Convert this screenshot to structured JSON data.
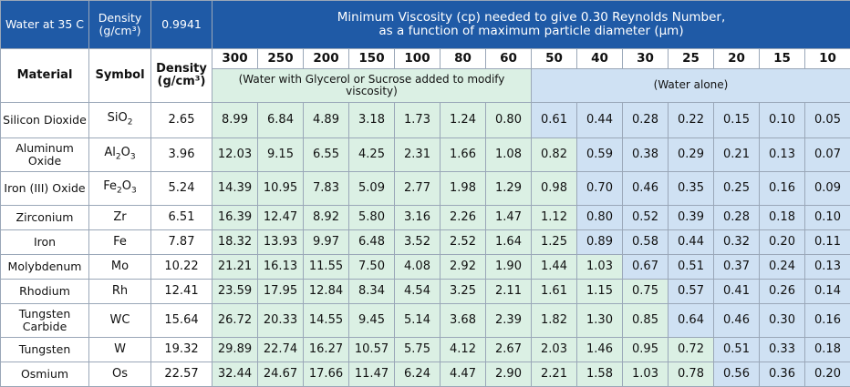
{
  "header": {
    "water_label": "Water at 35 C",
    "density_label": "Density (g/cm³)",
    "water_density": "0.9941",
    "title_line1": "Minimum Viscosity (cp) needed to give 0.30 Reynolds Number,",
    "title_line2": "as a function of maximum particle diameter (μm)"
  },
  "columns": {
    "material": "Material",
    "symbol": "Symbol",
    "density": "Density (g/cm³)",
    "glycerol_note": "(Water with Glycerol or Sucrose added to modify viscosity)",
    "water_note": "(Water alone)"
  },
  "diameters": [
    "300",
    "250",
    "200",
    "150",
    "100",
    "80",
    "60",
    "50",
    "40",
    "30",
    "25",
    "20",
    "15",
    "10"
  ],
  "rows": [
    {
      "material": "Silicon Dioxide",
      "symbol": "SiO2",
      "density": "2.65",
      "values": [
        "8.99",
        "6.84",
        "4.89",
        "3.18",
        "1.73",
        "1.24",
        "0.80",
        "0.61",
        "0.44",
        "0.28",
        "0.22",
        "0.15",
        "0.10",
        "0.05"
      ]
    },
    {
      "material": "Aluminum Oxide",
      "symbol": "Al2O3",
      "density": "3.96",
      "values": [
        "12.03",
        "9.15",
        "6.55",
        "4.25",
        "2.31",
        "1.66",
        "1.08",
        "0.82",
        "0.59",
        "0.38",
        "0.29",
        "0.21",
        "0.13",
        "0.07"
      ]
    },
    {
      "material": "Iron (III) Oxide",
      "symbol": "Fe2O3",
      "density": "5.24",
      "values": [
        "14.39",
        "10.95",
        "7.83",
        "5.09",
        "2.77",
        "1.98",
        "1.29",
        "0.98",
        "0.70",
        "0.46",
        "0.35",
        "0.25",
        "0.16",
        "0.09"
      ]
    },
    {
      "material": "Zirconium",
      "symbol": "Zr",
      "density": "6.51",
      "values": [
        "16.39",
        "12.47",
        "8.92",
        "5.80",
        "3.16",
        "2.26",
        "1.47",
        "1.12",
        "0.80",
        "0.52",
        "0.39",
        "0.28",
        "0.18",
        "0.10"
      ]
    },
    {
      "material": "Iron",
      "symbol": "Fe",
      "density": "7.87",
      "values": [
        "18.32",
        "13.93",
        "9.97",
        "6.48",
        "3.52",
        "2.52",
        "1.64",
        "1.25",
        "0.89",
        "0.58",
        "0.44",
        "0.32",
        "0.20",
        "0.11"
      ]
    },
    {
      "material": "Molybdenum",
      "symbol": "Mo",
      "density": "10.22",
      "values": [
        "21.21",
        "16.13",
        "11.55",
        "7.50",
        "4.08",
        "2.92",
        "1.90",
        "1.44",
        "1.03",
        "0.67",
        "0.51",
        "0.37",
        "0.24",
        "0.13"
      ]
    },
    {
      "material": "Rhodium",
      "symbol": "Rh",
      "density": "12.41",
      "values": [
        "23.59",
        "17.95",
        "12.84",
        "8.34",
        "4.54",
        "3.25",
        "2.11",
        "1.61",
        "1.15",
        "0.75",
        "0.57",
        "0.41",
        "0.26",
        "0.14"
      ]
    },
    {
      "material": "Tungsten Carbide",
      "symbol": "WC",
      "density": "15.64",
      "values": [
        "26.72",
        "20.33",
        "14.55",
        "9.45",
        "5.14",
        "3.68",
        "2.39",
        "1.82",
        "1.30",
        "0.85",
        "0.64",
        "0.46",
        "0.30",
        "0.16"
      ]
    },
    {
      "material": "Tungsten",
      "symbol": "W",
      "density": "19.32",
      "values": [
        "29.89",
        "22.74",
        "16.27",
        "10.57",
        "5.75",
        "4.12",
        "2.67",
        "2.03",
        "1.46",
        "0.95",
        "0.72",
        "0.51",
        "0.33",
        "0.18"
      ]
    },
    {
      "material": "Osmium",
      "symbol": "Os",
      "density": "22.57",
      "values": [
        "32.44",
        "24.67",
        "17.66",
        "11.47",
        "6.24",
        "4.47",
        "2.90",
        "2.21",
        "1.58",
        "1.03",
        "0.78",
        "0.56",
        "0.36",
        "0.20"
      ]
    }
  ],
  "colors": {
    "header_blue": "#1f5aa6",
    "glycerol_green": "#dbf0e4",
    "water_blue": "#cfe1f3"
  }
}
